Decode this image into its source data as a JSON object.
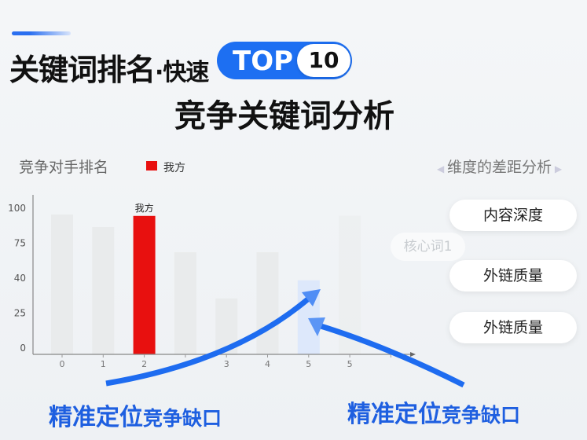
{
  "header": {
    "title_main": "关键词排名",
    "title_dot": "·快速",
    "badge_top": "TOP",
    "badge_number": "10",
    "subtitle": "竞争关键词分析"
  },
  "chart_data": {
    "type": "bar",
    "title": "竞争对手排名",
    "legend": [
      {
        "name": "我方",
        "color": "#e8100f"
      }
    ],
    "legend_position": "top",
    "categories": [
      "0",
      "1",
      "2",
      "",
      "3",
      "4",
      "5",
      "5"
    ],
    "y_tick_labels": [
      "0",
      "25",
      "40",
      "75",
      "100"
    ],
    "values_percent_of_axis": [
      100,
      91,
      99,
      73,
      40,
      73,
      53,
      99
    ],
    "highlight": {
      "index": 2,
      "label": "我方",
      "color": "#e8100f"
    },
    "target_index": 6,
    "grid": false
  },
  "right_panel": {
    "title": "维度的差距分析",
    "faint_label": "核心词1",
    "items": [
      "内容深度",
      "外链质量",
      "外链质量"
    ]
  },
  "callouts": [
    {
      "big": "精准定位",
      "small": "竞争缺口"
    },
    {
      "big": "精准定位",
      "small": "竞争缺口"
    }
  ],
  "colors": {
    "accent": "#1d6ff2",
    "highlight": "#e8100f",
    "bar": "#e9ebec"
  }
}
